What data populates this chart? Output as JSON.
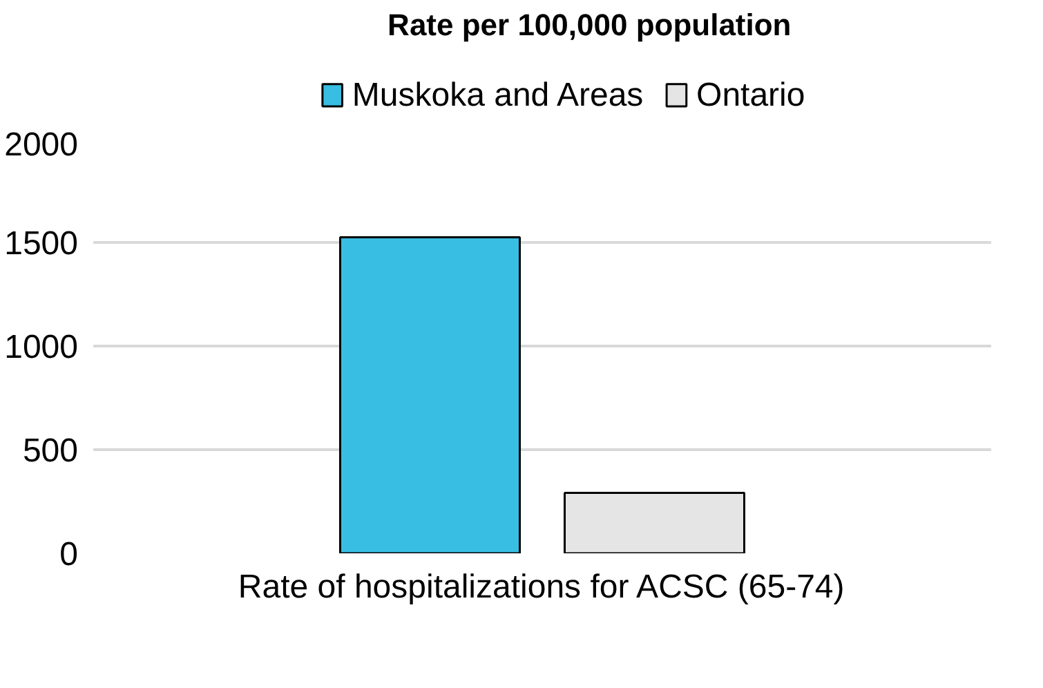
{
  "chart_data": {
    "type": "bar",
    "title": "Rate per 100,000 population",
    "categories": [
      "Rate of hospitalizations for ACSC (65-74)"
    ],
    "series": [
      {
        "name": "Muskoka and Areas",
        "color": "#38bee2",
        "values": [
          1525
        ]
      },
      {
        "name": "Ontario",
        "color": "#e5e5e5",
        "values": [
          292
        ]
      }
    ],
    "ylim": [
      0,
      2000
    ],
    "yticks": [
      0,
      500,
      1000,
      1500,
      2000
    ],
    "grid": "y",
    "legend": "top"
  }
}
